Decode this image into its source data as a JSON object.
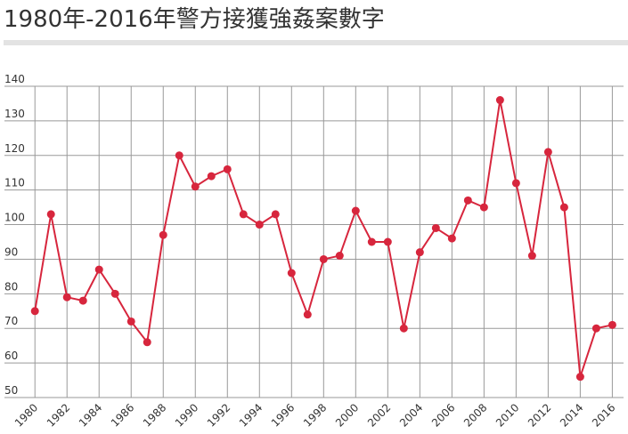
{
  "chart_data": {
    "type": "line",
    "title": "1980年-2016年警方接獲強姦案數字",
    "x": [
      1980,
      1981,
      1982,
      1983,
      1984,
      1985,
      1986,
      1987,
      1988,
      1989,
      1990,
      1991,
      1992,
      1993,
      1994,
      1995,
      1996,
      1997,
      1998,
      1999,
      2000,
      2001,
      2002,
      2003,
      2004,
      2005,
      2006,
      2007,
      2008,
      2009,
      2010,
      2011,
      2012,
      2013,
      2014,
      2015,
      2016
    ],
    "series": [
      {
        "color": "#d7263d",
        "values": [
          75,
          103,
          79,
          78,
          87,
          80,
          72,
          66,
          97,
          120,
          111,
          114,
          116,
          103,
          100,
          103,
          86,
          74,
          90,
          91,
          104,
          95,
          95,
          70,
          92,
          99,
          96,
          107,
          105,
          136,
          112,
          91,
          121,
          105,
          56,
          70,
          71
        ]
      }
    ],
    "xlim": [
      1978.1,
      2016.7
    ],
    "xticks": [
      1980,
      1982,
      1984,
      1986,
      1988,
      1990,
      1992,
      1994,
      1996,
      1998,
      2000,
      2002,
      2004,
      2006,
      2008,
      2010,
      2012,
      2014,
      2016
    ],
    "ylim": [
      50,
      140
    ],
    "yticks": [
      50,
      60,
      70,
      80,
      90,
      100,
      110,
      120,
      130,
      140
    ],
    "grid": true
  }
}
